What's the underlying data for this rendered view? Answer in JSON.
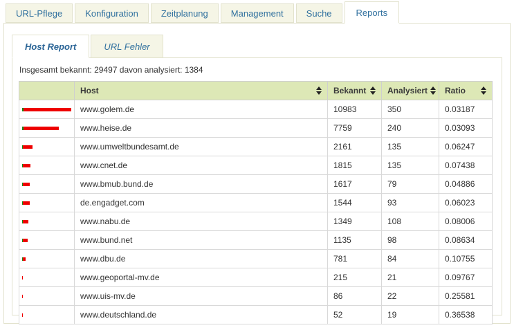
{
  "colors": {
    "tab_bg": "#f5f5e6",
    "tab_border": "#e2e2cd",
    "tab_text": "#31719f",
    "header_bg": "#dde8b6",
    "bar_green": "#168a16",
    "bar_red": "#ee0000"
  },
  "main_tabs": {
    "items": [
      {
        "label": "URL-Pflege",
        "active": false
      },
      {
        "label": "Konfiguration",
        "active": false
      },
      {
        "label": "Zeitplanung",
        "active": false
      },
      {
        "label": "Management",
        "active": false
      },
      {
        "label": "Suche",
        "active": false
      },
      {
        "label": "Reports",
        "active": true
      }
    ]
  },
  "sub_tabs": {
    "items": [
      {
        "label": "Host Report",
        "active": true
      },
      {
        "label": "URL Fehler",
        "active": false
      }
    ]
  },
  "report": {
    "summary": "Insgesamt bekannt: 29497 davon analysiert: 1384"
  },
  "table": {
    "columns": [
      {
        "label": "",
        "sortable": false
      },
      {
        "label": "Host",
        "sortable": true
      },
      {
        "label": "Bekannt",
        "sortable": true
      },
      {
        "label": "Analysiert",
        "sortable": true
      },
      {
        "label": "Ratio",
        "sortable": true
      }
    ],
    "rows": [
      {
        "host": "www.golem.de",
        "bekannt": 10983,
        "analysiert": 350,
        "ratio": "0.03187"
      },
      {
        "host": "www.heise.de",
        "bekannt": 7759,
        "analysiert": 240,
        "ratio": "0.03093"
      },
      {
        "host": "www.umweltbundesamt.de",
        "bekannt": 2161,
        "analysiert": 135,
        "ratio": "0.06247"
      },
      {
        "host": "www.cnet.de",
        "bekannt": 1815,
        "analysiert": 135,
        "ratio": "0.07438"
      },
      {
        "host": "www.bmub.bund.de",
        "bekannt": 1617,
        "analysiert": 79,
        "ratio": "0.04886"
      },
      {
        "host": "de.engadget.com",
        "bekannt": 1544,
        "analysiert": 93,
        "ratio": "0.06023"
      },
      {
        "host": "www.nabu.de",
        "bekannt": 1349,
        "analysiert": 108,
        "ratio": "0.08006"
      },
      {
        "host": "www.bund.net",
        "bekannt": 1135,
        "analysiert": 98,
        "ratio": "0.08634"
      },
      {
        "host": "www.dbu.de",
        "bekannt": 781,
        "analysiert": 84,
        "ratio": "0.10755"
      },
      {
        "host": "www.geoportal-mv.de",
        "bekannt": 215,
        "analysiert": 21,
        "ratio": "0.09767"
      },
      {
        "host": "www.uis-mv.de",
        "bekannt": 86,
        "analysiert": 22,
        "ratio": "0.25581"
      },
      {
        "host": "www.deutschland.de",
        "bekannt": 52,
        "analysiert": 19,
        "ratio": "0.36538"
      }
    ]
  }
}
